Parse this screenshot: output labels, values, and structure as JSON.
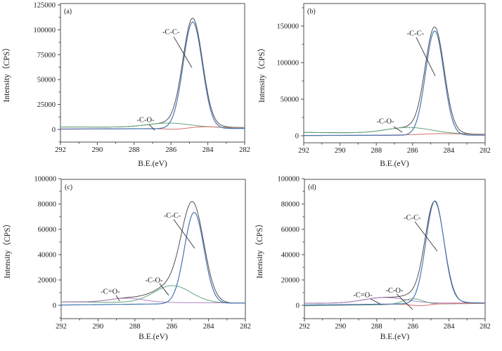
{
  "figure": {
    "background": "#ffffff",
    "description": "Four-panel XPS C1s spectra figure with fitted peak components"
  },
  "colors": {
    "envelope": "#3f3f3f",
    "c_c_peak": "#4677b2",
    "c_o_peak": "#65a67c",
    "c_dbl_o_peak": "#b283c5",
    "background_line": "#d4736e",
    "spine": "#4d4d4d",
    "annotation_line": "#333333"
  },
  "chart_data": [
    {
      "id": "a",
      "type": "line",
      "panel_label": "(a)",
      "xlabel": "B.E.(eV)",
      "ylabel": "Intensity（CPS）",
      "x_range": [
        292,
        282
      ],
      "xticks": [
        292,
        290,
        288,
        286,
        284,
        282
      ],
      "x_minor_ticks": [
        291,
        289,
        287,
        285,
        283
      ],
      "yticks": [
        0,
        25000,
        50000,
        75000,
        100000,
        125000
      ],
      "y_minor_step": 12500,
      "ylim": [
        -12700,
        126400
      ],
      "series": [
        {
          "name": "envelope",
          "color": "#3f3f3f",
          "width": 0.9,
          "base": [
            2500,
            1700
          ],
          "peaks": [
            [
              284.82,
              106500,
              0.53
            ],
            [
              286.15,
              4200,
              1.15
            ],
            [
              284.2,
              1200,
              1.1
            ]
          ]
        },
        {
          "name": "C-O-component",
          "color": "#65a67c",
          "width": 1,
          "base": [
            2450,
            2000
          ],
          "peaks": [
            [
              286.15,
              4200,
              1.15
            ]
          ]
        },
        {
          "name": "background-line",
          "color": "#d4736e",
          "width": 1,
          "base": [
            200,
            1400
          ],
          "peaks": [
            [
              284.2,
              1500,
              0.9
            ],
            [
              285.7,
              -1000,
              0.55
            ]
          ]
        },
        {
          "name": "C-C-component",
          "color": "#4677b2",
          "width": 1.2,
          "base": [
            500,
            1000
          ],
          "peaks": [
            [
              284.82,
              107000,
              0.52
            ]
          ]
        }
      ],
      "annotations": [
        {
          "text": "-C-C-",
          "x": 286.0,
          "y": 98000,
          "line": [
            285.85,
            93000,
            284.86,
            62000
          ]
        },
        {
          "text": "-C-O-",
          "x": 287.38,
          "y": 9900,
          "line": [
            287.19,
            4900,
            286.88,
            -700
          ]
        }
      ]
    },
    {
      "id": "b",
      "type": "line",
      "panel_label": "(b)",
      "xlabel": "B.E.(eV)",
      "ylabel": "Intensity（CPS）",
      "x_range": [
        292,
        282
      ],
      "xticks": [
        292,
        290,
        288,
        286,
        284,
        282
      ],
      "x_minor_ticks": [
        291,
        289,
        287,
        285,
        283
      ],
      "yticks": [
        0,
        50000,
        100000,
        150000
      ],
      "y_minor_step": 25000,
      "ylim": [
        -9600,
        180800
      ],
      "series": [
        {
          "name": "envelope",
          "color": "#3f3f3f",
          "width": 0.9,
          "base": [
            4700,
            1800
          ],
          "peaks": [
            [
              284.78,
              140500,
              0.52
            ],
            [
              286.2,
              8200,
              1.25
            ],
            [
              284.4,
              1400,
              1.0
            ]
          ]
        },
        {
          "name": "C-O-component",
          "color": "#65a67c",
          "width": 1,
          "base": [
            4500,
            2200
          ],
          "peaks": [
            [
              286.2,
              8200,
              1.25
            ]
          ]
        },
        {
          "name": "background-line",
          "color": "#d4736e",
          "width": 1,
          "base": [
            300,
            1700
          ],
          "peaks": [
            [
              284.4,
              1600,
              1.0
            ]
          ]
        },
        {
          "name": "C-C-component",
          "color": "#4677b2",
          "width": 1.2,
          "base": [
            400,
            900
          ],
          "peaks": [
            [
              284.78,
              142500,
              0.5
            ]
          ]
        }
      ],
      "annotations": [
        {
          "text": "-C-C-",
          "x": 285.84,
          "y": 140400,
          "line": [
            285.8,
            134600,
            284.75,
            81700
          ]
        },
        {
          "text": "-C-O-",
          "x": 287.5,
          "y": 20200,
          "line": [
            287.04,
            12500,
            286.57,
            4800
          ]
        }
      ]
    },
    {
      "id": "c",
      "type": "line",
      "panel_label": "(c)",
      "xlabel": "B.E.(eV)",
      "ylabel": "Intensity（CPS）",
      "x_range": [
        292,
        282
      ],
      "xticks": [
        292,
        290,
        288,
        286,
        284,
        282
      ],
      "x_minor_ticks": [
        291,
        289,
        287,
        285,
        283
      ],
      "yticks": [
        0,
        20000,
        40000,
        60000,
        80000,
        100000
      ],
      "y_minor_step": 10000,
      "ylim": [
        -10556,
        99450
      ],
      "series": [
        {
          "name": "envelope",
          "color": "#3f3f3f",
          "width": 0.9,
          "base": [
            2700,
            1600
          ],
          "peaks": [
            [
              284.85,
              72500,
              0.6
            ],
            [
              285.95,
              13500,
              1.0
            ],
            [
              288.45,
              3200,
              0.95
            ]
          ]
        },
        {
          "name": "C-O-component",
          "color": "#65a67c",
          "width": 1,
          "base": [
            2600,
            1700
          ],
          "peaks": [
            [
              285.95,
              13500,
              1.0
            ]
          ]
        },
        {
          "name": "C-double-O-component",
          "color": "#b283c5",
          "width": 1,
          "base": [
            2700,
            1800
          ],
          "peaks": [
            [
              288.45,
              3200,
              0.95
            ]
          ]
        },
        {
          "name": "C-C-component",
          "color": "#4677b2",
          "width": 1.2,
          "base": [
            200,
            1800
          ],
          "peaks": [
            [
              284.78,
              72000,
              0.53
            ]
          ]
        }
      ],
      "annotations": [
        {
          "text": "-C-C-",
          "x": 285.97,
          "y": 71100,
          "line": [
            285.89,
            67800,
            284.75,
            45000
          ]
        },
        {
          "text": "-C-O-",
          "x": 286.96,
          "y": 20000,
          "line": [
            286.66,
            17200,
            286.16,
            7800
          ]
        },
        {
          "text": "-C=O-",
          "x": 289.33,
          "y": 11100,
          "line": [
            289.02,
            7800,
            288.83,
            3300
          ]
        }
      ]
    },
    {
      "id": "d",
      "type": "line",
      "panel_label": "(d)",
      "xlabel": "B.E.(eV)",
      "ylabel": "Intensity（CPS）",
      "x_range": [
        292,
        282
      ],
      "xticks": [
        292,
        290,
        288,
        286,
        284,
        282
      ],
      "x_minor_ticks": [
        291,
        289,
        287,
        285,
        283
      ],
      "yticks": [
        0,
        20000,
        40000,
        60000,
        80000,
        100000
      ],
      "y_minor_step": 10000,
      "ylim": [
        -10556,
        99450
      ],
      "series": [
        {
          "name": "envelope",
          "color": "#3f3f3f",
          "width": 0.9,
          "base": [
            1600,
            1900
          ],
          "peaks": [
            [
              284.8,
              80000,
              0.53
            ],
            [
              286.0,
              4300,
              0.55
            ],
            [
              287.55,
              4500,
              1.15
            ],
            [
              285.6,
              -1200,
              0.5
            ]
          ]
        },
        {
          "name": "C-double-O-component",
          "color": "#b283c5",
          "width": 1,
          "base": [
            1500,
            1800
          ],
          "peaks": [
            [
              287.55,
              4500,
              1.15
            ]
          ]
        },
        {
          "name": "C-O-component",
          "color": "#65a67c",
          "width": 1,
          "base": [
            -400,
            1500
          ],
          "peaks": [
            [
              286.0,
              4400,
              0.55
            ]
          ]
        },
        {
          "name": "background-line",
          "color": "#d4736e",
          "width": 1,
          "base": [
            100,
            1600
          ],
          "peaks": [
            [
              285.6,
              -1400,
              0.5
            ]
          ]
        },
        {
          "name": "C-C-component",
          "color": "#4677b2",
          "width": 1.2,
          "base": [
            200,
            1800
          ],
          "peaks": [
            [
              284.78,
              81000,
              0.5
            ],
            [
              283.5,
              900,
              0.55
            ]
          ]
        }
      ],
      "annotations": [
        {
          "text": "-C-C-",
          "x": 286.03,
          "y": 69400,
          "line": [
            285.89,
            66100,
            284.65,
            42800
          ]
        },
        {
          "text": "-C-O-",
          "x": 287.02,
          "y": 11900,
          "line": [
            286.9,
            8900,
            286.01,
            -3300
          ]
        },
        {
          "text": "-C=O-",
          "x": 288.77,
          "y": 8300,
          "line": [
            288.34,
            5000,
            287.76,
            600
          ]
        }
      ]
    }
  ]
}
